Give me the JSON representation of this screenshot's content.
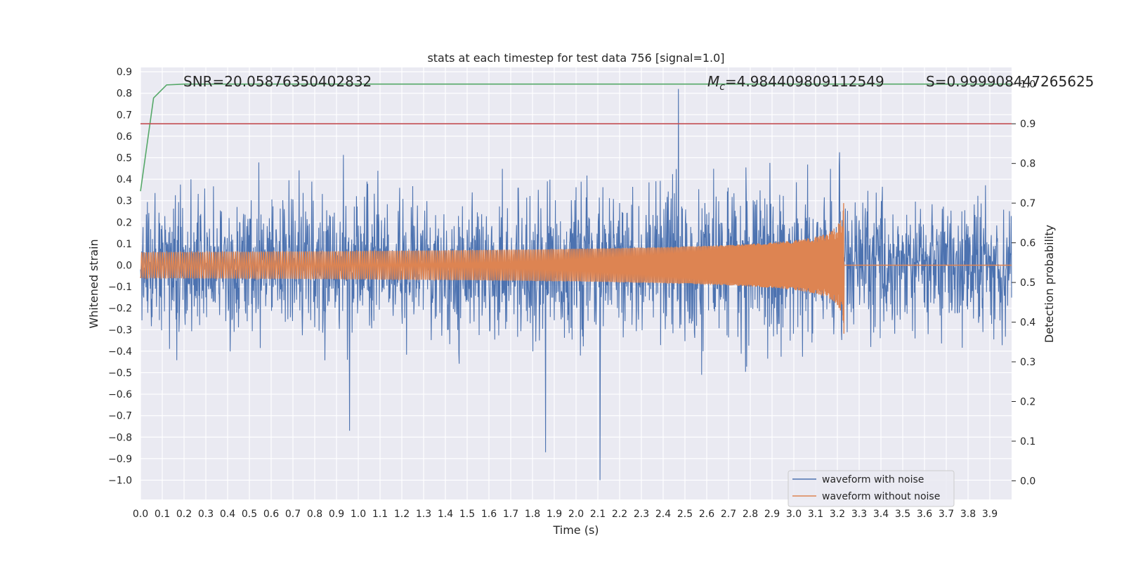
{
  "chart_data": {
    "type": "line",
    "title": "stats at each timestep for test data 756 [signal=1.0]",
    "xlabel": "Time (s)",
    "ylabel": "Whitened strain",
    "y2label": "Detection probability",
    "xlim": [
      0.0,
      4.0
    ],
    "ylim": [
      -1.09,
      0.92
    ],
    "y2lim": [
      -0.047,
      1.042
    ],
    "grid": true,
    "legend_position": "lower right",
    "x_ticks": [
      "0.0",
      "0.1",
      "0.2",
      "0.3",
      "0.4",
      "0.5",
      "0.6",
      "0.7",
      "0.8",
      "0.9",
      "1.0",
      "1.1",
      "1.2",
      "1.3",
      "1.4",
      "1.5",
      "1.6",
      "1.7",
      "1.8",
      "1.9",
      "2.0",
      "2.1",
      "2.2",
      "2.3",
      "2.4",
      "2.5",
      "2.6",
      "2.7",
      "2.8",
      "2.9",
      "3.0",
      "3.1",
      "3.2",
      "3.3",
      "3.4",
      "3.5",
      "3.6",
      "3.7",
      "3.8",
      "3.9"
    ],
    "y_ticks": [
      "0.9",
      "0.8",
      "0.7",
      "0.6",
      "0.5",
      "0.4",
      "0.3",
      "0.2",
      "0.1",
      "0.0",
      "−0.1",
      "−0.2",
      "−0.3",
      "−0.4",
      "−0.5",
      "−0.6",
      "−0.7",
      "−0.8",
      "−0.9",
      "−1.0"
    ],
    "y2_ticks": [
      "1.0",
      "0.9",
      "0.8",
      "0.7",
      "0.6",
      "0.5",
      "0.4",
      "0.3",
      "0.2",
      "0.1",
      "0.0"
    ],
    "annotations": {
      "snr": "SNR=20.05876350402832",
      "mc_symbol": "M",
      "mc_sub": "c",
      "mc_value": "=4.984409809112549",
      "s": "S=0.999908447265625"
    },
    "series": [
      {
        "name": "waveform with noise",
        "color": "#4c72b0",
        "axis": "left",
        "description": "noisy whitened strain, mostly within ±0.45 with spikes up to 0.82 and down to −1.0",
        "notable_extrema": [
          {
            "x": 2.47,
            "y": 0.82
          },
          {
            "x": 2.11,
            "y": -1.0
          },
          {
            "x": 1.86,
            "y": -0.87
          },
          {
            "x": 0.96,
            "y": -0.77
          }
        ]
      },
      {
        "name": "waveform without noise",
        "color": "#dd8452",
        "axis": "left",
        "description": "chirp signal, amplitude ~0.06 rising to ~0.44 at merger near t=3.23 s, then flat at 0",
        "merger_time": 3.23,
        "start_amplitude": 0.06,
        "peak_amplitude": 0.44
      },
      {
        "name": "",
        "color": "#55a868",
        "axis": "right",
        "x": [
          0.0,
          0.06,
          0.12,
          0.2,
          4.0
        ],
        "values": [
          0.73,
          0.965,
          0.998,
          1.0,
          1.0
        ]
      },
      {
        "name": "",
        "color": "#c44e52",
        "axis": "right",
        "x": [
          0.0,
          4.0
        ],
        "values": [
          0.9,
          0.9
        ]
      }
    ]
  }
}
